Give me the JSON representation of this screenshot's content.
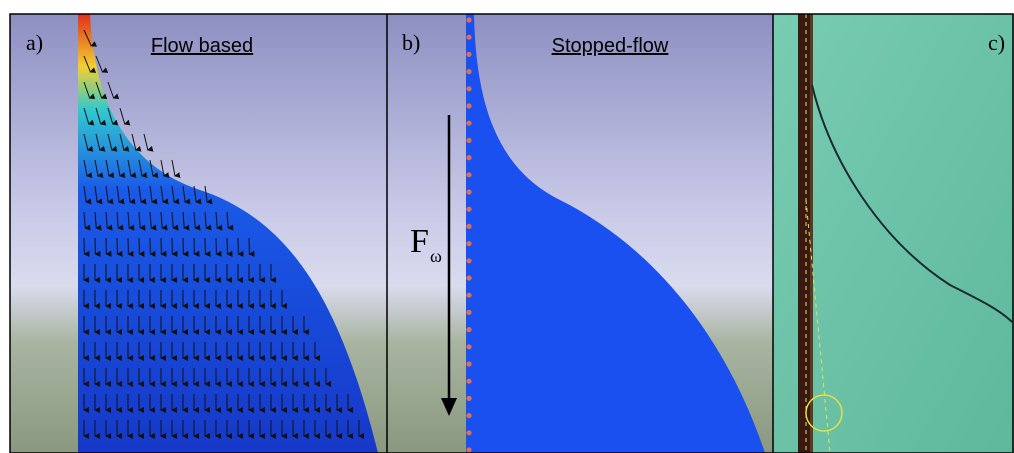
{
  "panels": [
    {
      "label": "a)",
      "title": "Flow based"
    },
    {
      "label": "b)",
      "title": "Stopped-flow",
      "force_symbol": "F",
      "force_subscript": "ω"
    },
    {
      "label": "c)"
    }
  ]
}
